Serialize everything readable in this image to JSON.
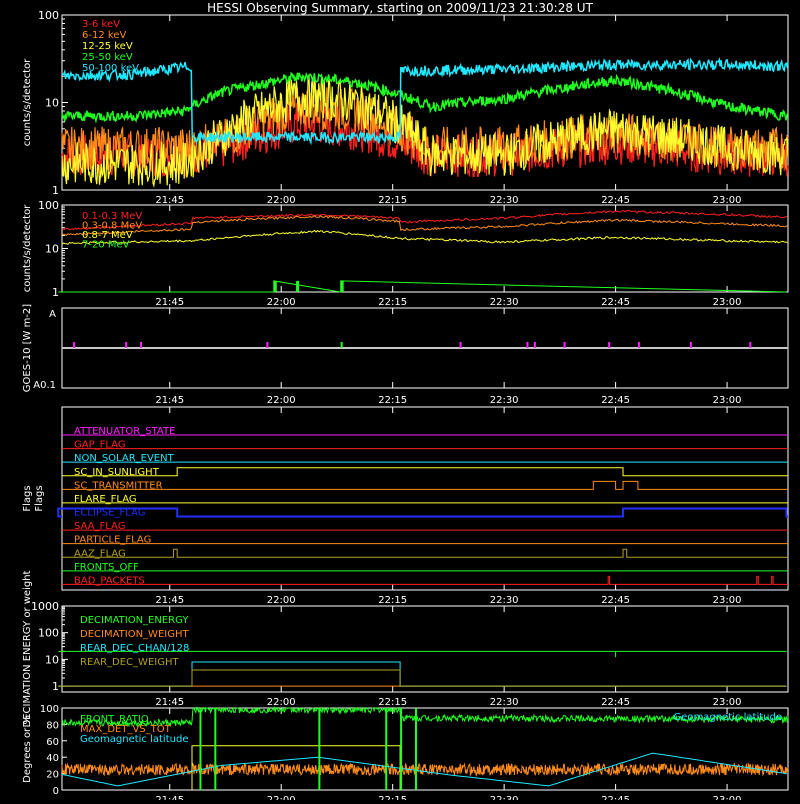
{
  "title": "HESSI Observing Summary, starting on 2009/11/23 21:30:28 UT",
  "time_ticks": [
    "21:45",
    "22:00",
    "22:15",
    "22:30",
    "22:45",
    "23:00"
  ],
  "colors": {
    "background": "#000000",
    "axes": "#ffffff",
    "red": "#ff2020",
    "orange": "#ff8c1a",
    "yellow": "#ffff30",
    "green": "#20ff20",
    "cyan": "#20e8ff",
    "magenta": "#ff20ff",
    "blue": "#2030ff",
    "olive": "#b0a020",
    "grey": "#c8c8c8"
  },
  "chart_data": [
    {
      "type": "line",
      "panel": "low-energy",
      "ylabel": "counts/s/detector",
      "ylim": [
        1,
        100
      ],
      "yscale": "log",
      "ytick_labels": [
        "1",
        "10",
        "100"
      ],
      "legend_placement": "top-left",
      "series": [
        {
          "name": "3-6 keV",
          "color": "#ff2020",
          "x": [
            "21:30",
            "21:47",
            "21:52",
            "22:03",
            "22:10",
            "22:20",
            "22:30",
            "22:45",
            "23:00",
            "23:08"
          ],
          "values": [
            2.5,
            2.5,
            3,
            6,
            5,
            2.5,
            2.5,
            3.5,
            2.5,
            2.5
          ]
        },
        {
          "name": "6-12 keV",
          "color": "#ff8c1a",
          "x": [
            "21:30",
            "21:47",
            "21:52",
            "22:03",
            "22:10",
            "22:20",
            "22:30",
            "22:45",
            "23:00",
            "23:08"
          ],
          "values": [
            3,
            3,
            3.5,
            9,
            8,
            3,
            3,
            4.5,
            3,
            3
          ]
        },
        {
          "name": "12-25 keV",
          "color": "#ffff30",
          "x": [
            "21:30",
            "21:47",
            "21:52",
            "22:03",
            "22:10",
            "22:20",
            "22:30",
            "22:45",
            "23:00",
            "23:08"
          ],
          "values": [
            2,
            2,
            4,
            12,
            10,
            2.5,
            2.5,
            5,
            3,
            2.5
          ]
        },
        {
          "name": "25-50 keV",
          "color": "#20ff20",
          "x": [
            "21:30",
            "21:40",
            "21:47",
            "21:52",
            "22:03",
            "22:10",
            "22:20",
            "22:30",
            "22:45",
            "23:00",
            "23:08"
          ],
          "values": [
            7,
            7,
            8,
            13,
            20,
            17,
            9,
            11,
            18,
            9,
            7
          ]
        },
        {
          "name": "50-100 keV",
          "color": "#20e8ff",
          "x": [
            "21:30",
            "21:40",
            "21:48",
            "21:48",
            "22:16",
            "22:16",
            "22:30",
            "22:45",
            "23:00",
            "23:08"
          ],
          "values": [
            20,
            21,
            26,
            4,
            4,
            23,
            24,
            27,
            27,
            26
          ]
        }
      ]
    },
    {
      "type": "line",
      "panel": "high-energy",
      "ylabel": "counts/s/detector",
      "ylim": [
        1,
        100
      ],
      "yscale": "log",
      "ytick_labels": [
        "1",
        "10",
        "100"
      ],
      "legend_placement": "top-left",
      "series": [
        {
          "name": "0.1-0.3 MeV",
          "color": "#ff2020",
          "x": [
            "21:30",
            "21:48",
            "21:48",
            "22:05",
            "22:16",
            "22:16",
            "22:30",
            "22:45",
            "23:00",
            "23:08"
          ],
          "values": [
            27,
            38,
            50,
            60,
            50,
            40,
            50,
            72,
            60,
            52
          ]
        },
        {
          "name": "0.3-0.8 MeV",
          "color": "#ff8c1a",
          "x": [
            "21:30",
            "21:48",
            "21:48",
            "22:05",
            "22:16",
            "22:16",
            "22:30",
            "22:45",
            "23:00",
            "23:08"
          ],
          "values": [
            20,
            28,
            40,
            55,
            42,
            27,
            32,
            45,
            37,
            33
          ]
        },
        {
          "name": "0.8-7 MeV",
          "color": "#ffff30",
          "x": [
            "21:30",
            "21:48",
            "22:05",
            "22:16",
            "22:30",
            "22:45",
            "23:00",
            "23:08"
          ],
          "values": [
            13,
            15,
            25,
            17,
            14,
            18,
            15,
            14
          ]
        },
        {
          "name": "7-20 MeV",
          "color": "#20ff20",
          "x": [
            "21:30",
            "21:59",
            "21:59",
            "22:08",
            "22:08",
            "23:08"
          ],
          "values": [
            1,
            1,
            1.8,
            1,
            1.8,
            1
          ]
        }
      ]
    },
    {
      "type": "line",
      "panel": "goes",
      "ylabel": "GOES-10 [W m-2]",
      "ytick_labels": [
        "A",
        "A0.1"
      ],
      "series": [
        {
          "color": "#c8c8c8",
          "x": [
            "21:30",
            "23:08"
          ],
          "values": [
            0.5,
            0.5
          ]
        }
      ],
      "annotations": "magenta/green spikes near 21:32, 21:41, 22:08, 22:24, 22:33, 22:48, 23:03"
    },
    {
      "type": "table",
      "panel": "flags",
      "ylabel": "Flags",
      "flags": [
        {
          "name": "ATTENUATOR_STATE",
          "color": "#ff20ff",
          "on": []
        },
        {
          "name": "GAP_FLAG",
          "color": "#ff2020",
          "on": []
        },
        {
          "name": "NON_SOLAR_EVENT",
          "color": "#20e8ff",
          "on": []
        },
        {
          "name": "SC_IN_SUNLIGHT",
          "color": "#ffff30",
          "on": [
            [
              "21:46",
              "22:46"
            ]
          ]
        },
        {
          "name": "SC_TRANSMITTER",
          "color": "#ff8c1a",
          "on": [
            [
              "22:42",
              "22:45"
            ],
            [
              "22:46",
              "22:48"
            ]
          ]
        },
        {
          "name": "FLARE_FLAG",
          "color": "#ffff30",
          "on": []
        },
        {
          "name": "ECLIPSE_FLAG",
          "color": "#2030ff",
          "on": [
            [
              "21:30",
              "21:46"
            ],
            [
              "22:46",
              "23:08"
            ]
          ]
        },
        {
          "name": "SAA_FLAG",
          "color": "#ff2020",
          "on": []
        },
        {
          "name": "PARTICLE_FLAG",
          "color": "#ff8c1a",
          "on": []
        },
        {
          "name": "AAZ_FLAG",
          "color": "#b0a020",
          "on": [
            [
              "21:45.5",
              "21:46"
            ],
            [
              "22:46",
              "22:46.5"
            ]
          ]
        },
        {
          "name": "FRONTS_OFF",
          "color": "#20ff20",
          "on": []
        },
        {
          "name": "BAD_PACKETS",
          "color": "#ff2020",
          "on": [
            [
              "22:44",
              "22:44.2"
            ],
            [
              "23:04",
              "23:04.2"
            ],
            [
              "23:06",
              "23:06.2"
            ]
          ]
        }
      ]
    },
    {
      "type": "line",
      "panel": "decimation",
      "ylabel": "DECIMATION ENERGY or weight",
      "ylim": [
        0.6,
        1000
      ],
      "yscale": "log",
      "ytick_labels": [
        "1",
        "10",
        "100",
        "1000"
      ],
      "legend_placement": "top-left",
      "series": [
        {
          "name": "DECIMATION_ENERGY",
          "color": "#20ff20",
          "x": [
            "21:30",
            "23:08"
          ],
          "values": [
            20,
            20
          ]
        },
        {
          "name": "DECIMATION_WEIGHT",
          "color": "#ff8c1a",
          "x": [
            "21:30",
            "23:08"
          ],
          "values": [
            1,
            1
          ]
        },
        {
          "name": "REAR_DEC_CHAN/128",
          "color": "#20e8ff",
          "x": [
            "21:30",
            "21:48",
            "21:48",
            "22:16",
            "22:16",
            "23:08"
          ],
          "values": [
            1,
            1,
            8,
            8,
            1,
            1
          ]
        },
        {
          "name": "REAR_DEC_WEIGHT",
          "color": "#b0a020",
          "x": [
            "21:30",
            "21:48",
            "21:48",
            "22:16",
            "22:16",
            "23:08"
          ],
          "values": [
            1,
            1,
            4,
            4,
            1,
            1
          ]
        }
      ]
    },
    {
      "type": "line",
      "panel": "front-ratio",
      "ylabel": "Degrees or %",
      "ylim": [
        0,
        100
      ],
      "ytick_labels": [
        "0",
        "20",
        "40",
        "60",
        "80",
        "100"
      ],
      "series": [
        {
          "name": "FRONT_RATIO",
          "color": "#20ff20",
          "x": [
            "21:30",
            "21:48",
            "21:48",
            "22:16",
            "22:16",
            "23:08"
          ],
          "values": [
            82,
            82,
            98,
            98,
            88,
            86
          ]
        },
        {
          "name": "MAX_DET_VS_TOT",
          "color": "#ff8c1a",
          "x": [
            "21:30",
            "23:08"
          ],
          "values": [
            25,
            25
          ]
        },
        {
          "name": "Geomagnetic latitude",
          "color": "#20e8ff",
          "x": [
            "21:30",
            "21:38",
            "21:52",
            "22:05",
            "22:23",
            "22:36",
            "22:50",
            "23:08"
          ],
          "values": [
            20,
            5,
            30,
            40,
            18,
            5,
            45,
            20
          ]
        },
        {
          "color": "#ffff30",
          "x": [
            "21:48",
            "21:48",
            "22:16",
            "22:16"
          ],
          "values": [
            0,
            54,
            54,
            0
          ]
        }
      ]
    }
  ]
}
